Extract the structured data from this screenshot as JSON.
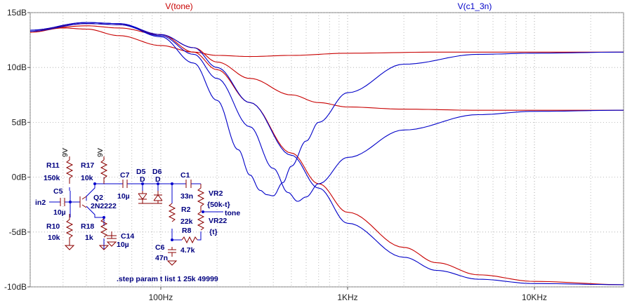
{
  "colors": {
    "tone": "#c80000",
    "c1_3n": "#0000c8",
    "grid": "#a8a8a8",
    "background": "#ffffff"
  },
  "chart_data": {
    "type": "line",
    "x_scale": "log",
    "x_unit": "Hz",
    "xlim": [
      20,
      30000
    ],
    "ylim": [
      -10,
      15
    ],
    "grid": true,
    "legend": "top",
    "x_tick_labels": [
      "100Hz",
      "1KHz",
      "10KHz"
    ],
    "x_tick_values": [
      100,
      1000,
      10000
    ],
    "y_tick_labels": [
      "15dB",
      "10dB",
      "5dB",
      "0dB",
      "-5dB",
      "-10dB"
    ],
    "y_tick_values": [
      15,
      10,
      5,
      0,
      -5,
      -10
    ],
    "series": [
      {
        "name": "V(tone)",
        "color": "#c80000",
        "style": "red-flat-high",
        "points": [
          [
            20,
            13.2
          ],
          [
            30,
            13.6
          ],
          [
            40,
            13.5
          ],
          [
            60,
            12.9
          ],
          [
            100,
            12.0
          ],
          [
            150,
            11.4
          ],
          [
            200,
            11.1
          ],
          [
            300,
            11.0
          ],
          [
            500,
            11.1
          ],
          [
            1000,
            11.3
          ],
          [
            3000,
            11.4
          ],
          [
            30000,
            11.4
          ]
        ]
      },
      {
        "name": "V(tone)",
        "color": "#c80000",
        "style": "red-mid",
        "points": [
          [
            20,
            13.4
          ],
          [
            40,
            13.8
          ],
          [
            60,
            13.6
          ],
          [
            100,
            13.0
          ],
          [
            150,
            11.8
          ],
          [
            200,
            10.5
          ],
          [
            300,
            9.0
          ],
          [
            500,
            7.5
          ],
          [
            700,
            6.8
          ],
          [
            1000,
            6.4
          ],
          [
            2000,
            6.2
          ],
          [
            5000,
            6.1
          ],
          [
            30000,
            6.1
          ]
        ]
      },
      {
        "name": "V(tone)",
        "color": "#c80000",
        "style": "red-low",
        "points": [
          [
            20,
            13.4
          ],
          [
            40,
            14.0
          ],
          [
            60,
            13.9
          ],
          [
            100,
            13.0
          ],
          [
            150,
            11.4
          ],
          [
            200,
            9.8
          ],
          [
            300,
            6.8
          ],
          [
            500,
            2.2
          ],
          [
            700,
            -0.6
          ],
          [
            1000,
            -3.2
          ],
          [
            2000,
            -6.4
          ],
          [
            3000,
            -7.8
          ],
          [
            5000,
            -8.9
          ],
          [
            10000,
            -9.5
          ],
          [
            30000,
            -9.8
          ]
        ]
      },
      {
        "name": "V(c1_3n)",
        "color": "#0000c8",
        "style": "blue-high",
        "points": [
          [
            20,
            13.4
          ],
          [
            40,
            14.1
          ],
          [
            60,
            14.0
          ],
          [
            100,
            12.8
          ],
          [
            150,
            10.4
          ],
          [
            200,
            7.0
          ],
          [
            260,
            2.5
          ],
          [
            300,
            0.2
          ],
          [
            340,
            -1.2
          ],
          [
            370,
            -1.6
          ],
          [
            400,
            -1.7
          ],
          [
            450,
            -0.5
          ],
          [
            500,
            1.0
          ],
          [
            600,
            3.3
          ],
          [
            700,
            5.0
          ],
          [
            1000,
            7.7
          ],
          [
            2000,
            10.3
          ],
          [
            5000,
            11.2
          ],
          [
            10000,
            11.3
          ],
          [
            30000,
            11.4
          ]
        ]
      },
      {
        "name": "V(c1_3n)",
        "color": "#0000c8",
        "style": "blue-mid",
        "points": [
          [
            20,
            13.3
          ],
          [
            40,
            14.0
          ],
          [
            60,
            13.9
          ],
          [
            100,
            12.9
          ],
          [
            150,
            11.2
          ],
          [
            200,
            9.0
          ],
          [
            300,
            4.6
          ],
          [
            400,
            0.8
          ],
          [
            480,
            -1.4
          ],
          [
            540,
            -2.2
          ],
          [
            600,
            -1.8
          ],
          [
            700,
            -0.6
          ],
          [
            1000,
            1.8
          ],
          [
            2000,
            4.3
          ],
          [
            5000,
            5.7
          ],
          [
            10000,
            6.0
          ],
          [
            30000,
            6.1
          ]
        ]
      },
      {
        "name": "V(c1_3n)",
        "color": "#0000c8",
        "style": "blue-low",
        "points": [
          [
            20,
            13.4
          ],
          [
            40,
            14.1
          ],
          [
            60,
            14.0
          ],
          [
            100,
            13.0
          ],
          [
            150,
            11.8
          ],
          [
            200,
            10.0
          ],
          [
            300,
            6.8
          ],
          [
            500,
            2.0
          ],
          [
            700,
            -1.0
          ],
          [
            1000,
            -4.2
          ],
          [
            2000,
            -7.3
          ],
          [
            3000,
            -8.5
          ],
          [
            5000,
            -9.3
          ],
          [
            10000,
            -9.7
          ],
          [
            30000,
            -9.8
          ]
        ]
      }
    ]
  },
  "legend": {
    "tone": "V(tone)",
    "c1_3n": "V(c1_3n)"
  },
  "schematic": {
    "labels": {
      "r11": "R11",
      "r11_val": "150k",
      "r11_supply": "9V",
      "r17": "R17",
      "r17_val": "10k",
      "r17_supply": "9V",
      "c5": "C5",
      "c5_val": "10µ",
      "in": "in2",
      "q2": "Q2",
      "q2_val": "2N2222",
      "r10": "R10",
      "r10_val": "10k",
      "r18": "R18",
      "r18_val": "1k",
      "c14": "C14",
      "c14_val": "10µ",
      "c7": "C7",
      "c7_val": "10µ",
      "d5": "D5",
      "d5_val": "D",
      "d6": "D6",
      "d6_val": "D",
      "c1": "C1",
      "c1_val": "33n",
      "vr2": "VR2",
      "vr2_val": "{50k-t}",
      "vr22": "VR22",
      "vr22_val": "{t}",
      "tone": "tone",
      "r2": "R2",
      "r2_val": "22k",
      "r8": "R8",
      "r8_val": "4.7k",
      "c6": "C6",
      "c6_val": "47n"
    },
    "directive": ".step param t list 1 25k  49999"
  }
}
